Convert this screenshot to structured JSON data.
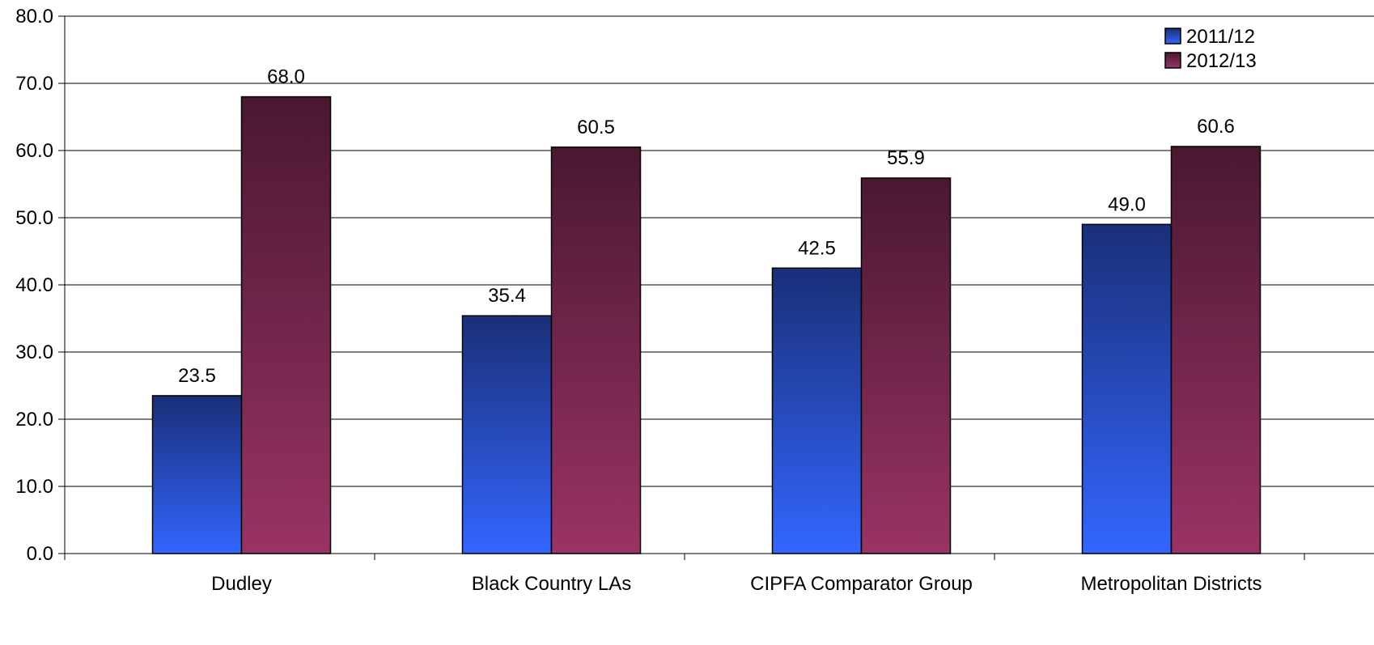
{
  "chart_data": {
    "type": "bar",
    "title": "",
    "xlabel": "",
    "ylabel": "",
    "categories": [
      "Dudley",
      "Black Country LAs",
      "CIPFA Comparator Group",
      "Metropolitan Districts"
    ],
    "series": [
      {
        "name": "2011/12",
        "values": [
          23.5,
          35.4,
          42.5,
          49.0
        ],
        "labels": [
          "23.5",
          "35.4",
          "42.5",
          "49.0"
        ]
      },
      {
        "name": "2012/13",
        "values": [
          68.0,
          60.5,
          55.9,
          60.6
        ],
        "labels": [
          "68.0",
          "60.5",
          "55.9",
          "60.6"
        ]
      }
    ],
    "ylim": [
      0,
      80
    ],
    "yticks": [
      "0.0",
      "10.0",
      "20.0",
      "30.0",
      "40.0",
      "50.0",
      "60.0",
      "70.0",
      "80.0"
    ],
    "grid": true,
    "legend_position": "top-right",
    "colors": {
      "2011/12": {
        "top": "#1a2f78",
        "bottom": "#3366ff"
      },
      "2012/13": {
        "top": "#4a1830",
        "bottom": "#9a3366"
      },
      "gridline": "#000000",
      "bar_outline": "#000000"
    }
  }
}
